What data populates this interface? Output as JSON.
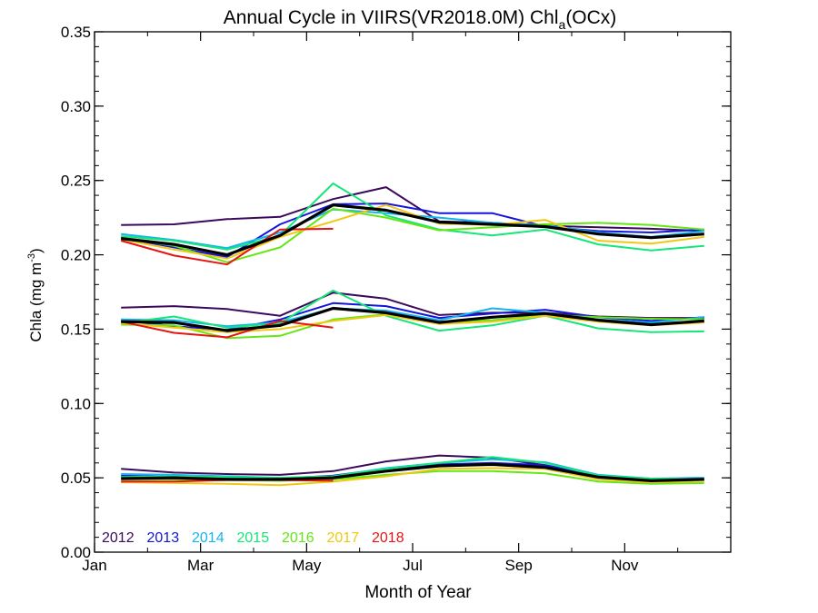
{
  "chart_data": {
    "type": "line",
    "title_main": "Annual Cycle in VIIRS(VR2018.0M) Chl",
    "title_sub": "a",
    "title_tail": "(OCx)",
    "xlabel": "Month of Year",
    "ylabel_main": "Chla (mg m",
    "ylabel_sup": "-3",
    "ylabel_tail": ")",
    "xlim": [
      0,
      12
    ],
    "ylim": [
      0,
      0.35
    ],
    "xticks": [
      {
        "pos": 0,
        "label": "Jan"
      },
      {
        "pos": 2,
        "label": "Mar"
      },
      {
        "pos": 4,
        "label": "May"
      },
      {
        "pos": 6,
        "label": "Jul"
      },
      {
        "pos": 8,
        "label": "Sep"
      },
      {
        "pos": 10,
        "label": "Nov"
      }
    ],
    "yticks": [
      0.0,
      0.05,
      0.1,
      0.15,
      0.2,
      0.25,
      0.3,
      0.35
    ],
    "ytick_labels": [
      "0.00",
      "0.05",
      "0.10",
      "0.15",
      "0.20",
      "0.25",
      "0.30",
      "0.35"
    ],
    "x": [
      0.5,
      1.5,
      2.5,
      3.5,
      4.5,
      5.5,
      6.5,
      7.5,
      8.5,
      9.5,
      10.5,
      11.5
    ],
    "legend_position": "bottom-left",
    "series": [
      {
        "name": "2012",
        "color": "#3c0a5a",
        "groups": [
          [
            0.22,
            0.2205,
            0.224,
            0.2255,
            0.2375,
            0.2455,
            0.2225,
            0.2215,
            0.2195,
            0.2185,
            0.2175,
            0.216
          ],
          [
            0.1645,
            0.1655,
            0.1635,
            0.159,
            0.1745,
            0.1705,
            0.1595,
            0.161,
            0.161,
            0.1585,
            0.1575,
            0.1575
          ],
          [
            0.056,
            0.0535,
            0.0525,
            0.052,
            0.0545,
            0.061,
            0.065,
            0.0635,
            0.0585,
            0.051,
            0.0485,
            0.049
          ]
        ]
      },
      {
        "name": "2013",
        "color": "#1414dc",
        "groups": [
          [
            0.2115,
            0.205,
            0.1985,
            0.2205,
            0.234,
            0.2345,
            0.228,
            0.228,
            0.219,
            0.216,
            0.215,
            0.217
          ],
          [
            0.156,
            0.152,
            0.1495,
            0.1565,
            0.1675,
            0.1655,
            0.1575,
            0.1605,
            0.163,
            0.158,
            0.1555,
            0.158
          ],
          [
            0.0515,
            0.0505,
            0.05,
            0.0495,
            0.0515,
            0.056,
            0.059,
            0.06,
            0.0585,
            0.0515,
            0.049,
            0.0495
          ]
        ]
      },
      {
        "name": "2014",
        "color": "#14b4f0",
        "groups": [
          [
            0.214,
            0.21,
            0.2045,
            0.215,
            0.2305,
            0.228,
            0.225,
            0.2215,
            0.22,
            0.215,
            0.212,
            0.216
          ],
          [
            0.1565,
            0.156,
            0.152,
            0.1545,
            0.164,
            0.1625,
            0.156,
            0.164,
            0.161,
            0.1565,
            0.1545,
            0.158
          ],
          [
            0.0525,
            0.052,
            0.051,
            0.05,
            0.051,
            0.0565,
            0.06,
            0.0625,
            0.0605,
            0.052,
            0.0495,
            0.05
          ]
        ]
      },
      {
        "name": "2015",
        "color": "#14e678",
        "groups": [
          [
            0.2125,
            0.2095,
            0.2035,
            0.213,
            0.248,
            0.2265,
            0.217,
            0.213,
            0.217,
            0.207,
            0.203,
            0.206
          ],
          [
            0.154,
            0.1585,
            0.151,
            0.154,
            0.176,
            0.159,
            0.149,
            0.1525,
            0.159,
            0.1505,
            0.148,
            0.1485
          ],
          [
            0.0505,
            0.051,
            0.0505,
            0.05,
            0.051,
            0.056,
            0.06,
            0.064,
            0.06,
            0.0515,
            0.0495,
            0.049
          ]
        ]
      },
      {
        "name": "2016",
        "color": "#64e614",
        "groups": [
          [
            0.2115,
            0.206,
            0.195,
            0.205,
            0.231,
            0.225,
            0.2165,
            0.2185,
            0.2205,
            0.2215,
            0.22,
            0.217
          ],
          [
            0.153,
            0.1525,
            0.144,
            0.1455,
            0.1565,
            0.16,
            0.1545,
            0.156,
            0.1595,
            0.158,
            0.157,
            0.1565
          ],
          [
            0.049,
            0.049,
            0.0485,
            0.048,
            0.049,
            0.052,
            0.0545,
            0.0545,
            0.053,
            0.0475,
            0.046,
            0.0465
          ]
        ]
      },
      {
        "name": "2017",
        "color": "#f0c814",
        "groups": [
          [
            0.2105,
            0.2035,
            0.1975,
            0.212,
            0.2225,
            0.2335,
            0.221,
            0.22,
            0.2235,
            0.2095,
            0.2075,
            0.212
          ],
          [
            0.154,
            0.151,
            0.148,
            0.15,
            0.1555,
            0.1595,
            0.1535,
            0.155,
            0.159,
            0.155,
            0.1525,
            0.1545
          ],
          [
            0.047,
            0.0465,
            0.046,
            0.045,
            0.0475,
            0.051,
            0.056,
            0.0565,
            0.056,
            0.049,
            0.047,
            0.048
          ]
        ]
      },
      {
        "name": "2018",
        "color": "#e61414",
        "groups": [
          [
            0.2095,
            0.1995,
            0.1935,
            0.217,
            0.2175
          ],
          [
            0.155,
            0.1475,
            0.1445,
            0.1555,
            0.151
          ],
          [
            0.0475,
            0.0475,
            0.0485,
            0.0485,
            0.048
          ]
        ]
      }
    ],
    "mean_series": {
      "color": "#000000",
      "groups": [
        [
          0.211,
          0.207,
          0.2,
          0.213,
          0.2335,
          0.23,
          0.222,
          0.2205,
          0.219,
          0.214,
          0.2115,
          0.214
        ],
        [
          0.155,
          0.1545,
          0.149,
          0.1525,
          0.164,
          0.161,
          0.1545,
          0.158,
          0.1605,
          0.156,
          0.153,
          0.1555
        ],
        [
          0.0495,
          0.05,
          0.049,
          0.049,
          0.05,
          0.0545,
          0.058,
          0.059,
          0.057,
          0.0505,
          0.048,
          0.049
        ]
      ]
    }
  }
}
